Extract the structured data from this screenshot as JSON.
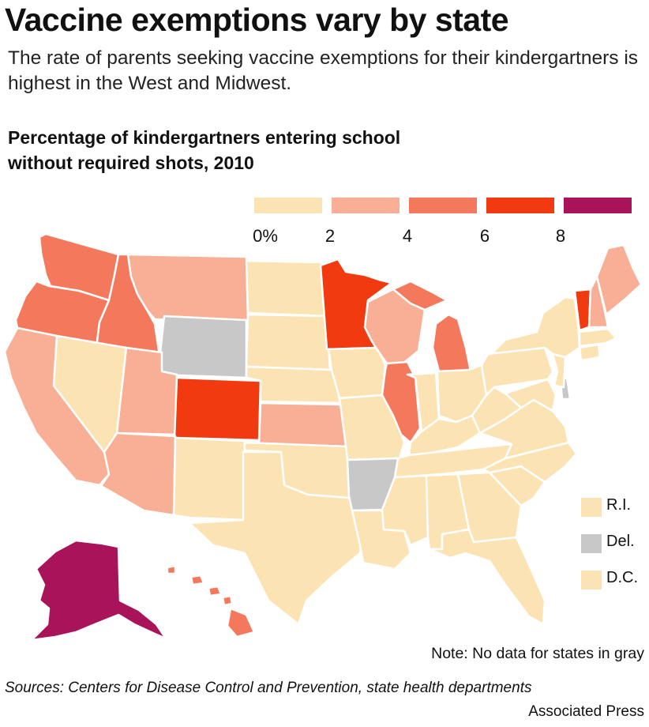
{
  "title": "Vaccine exemptions vary by state",
  "subtitle": "The rate of parents seeking vaccine exemptions for their kindergartners is highest in the West and Midwest.",
  "map_title_line1": "Percentage of kindergartners entering school",
  "map_title_line2": "without required shots, 2010",
  "legend": {
    "ticks": [
      "0%",
      "2",
      "4",
      "6",
      "8"
    ],
    "bins": [
      {
        "range": "0-2",
        "color": "#fbe3b3"
      },
      {
        "range": "2-4",
        "color": "#f9af95"
      },
      {
        "range": "4-6",
        "color": "#f4785c"
      },
      {
        "range": "6-8",
        "color": "#f23a10"
      },
      {
        "range": "8+",
        "color": "#a8135a"
      }
    ],
    "no_data_color": "#c8c8c8"
  },
  "small_states": [
    {
      "label": "R.I.",
      "bin": 0
    },
    {
      "label": "Del.",
      "bin": "no-data"
    },
    {
      "label": "D.C.",
      "bin": 0
    }
  ],
  "states": {
    "WA": 2,
    "OR": 2,
    "ID": 2,
    "MT": 1,
    "WY": "no-data",
    "CA": 1,
    "NV": 0,
    "UT": 1,
    "CO": 3,
    "AZ": 1,
    "NM": 0,
    "ND": 0,
    "SD": 0,
    "NE": 0,
    "KS": 1,
    "OK": 0,
    "TX": 0,
    "MN": 3,
    "IA": 0,
    "MO": 0,
    "AR": "no-data",
    "LA": 0,
    "WI": 1,
    "IL": 2,
    "MI": 2,
    "IN": 0,
    "OH": 0,
    "KY": 0,
    "TN": 0,
    "MS": 0,
    "AL": 0,
    "GA": 0,
    "FL": 0,
    "SC": 0,
    "NC": 0,
    "VA": 0,
    "WV": 0,
    "PA": 0,
    "NY": 0,
    "NJ": 0,
    "MD": 0,
    "DE": "no-data",
    "CT": 0,
    "MA": 0,
    "VT": 3,
    "NH": 1,
    "ME": 1,
    "AK": 4,
    "HI": 2
  },
  "note": "Note: No data for states in gray",
  "sources": "Sources: Centers for Disease Control and Prevention, state health departments",
  "credit": "Associated Press"
}
